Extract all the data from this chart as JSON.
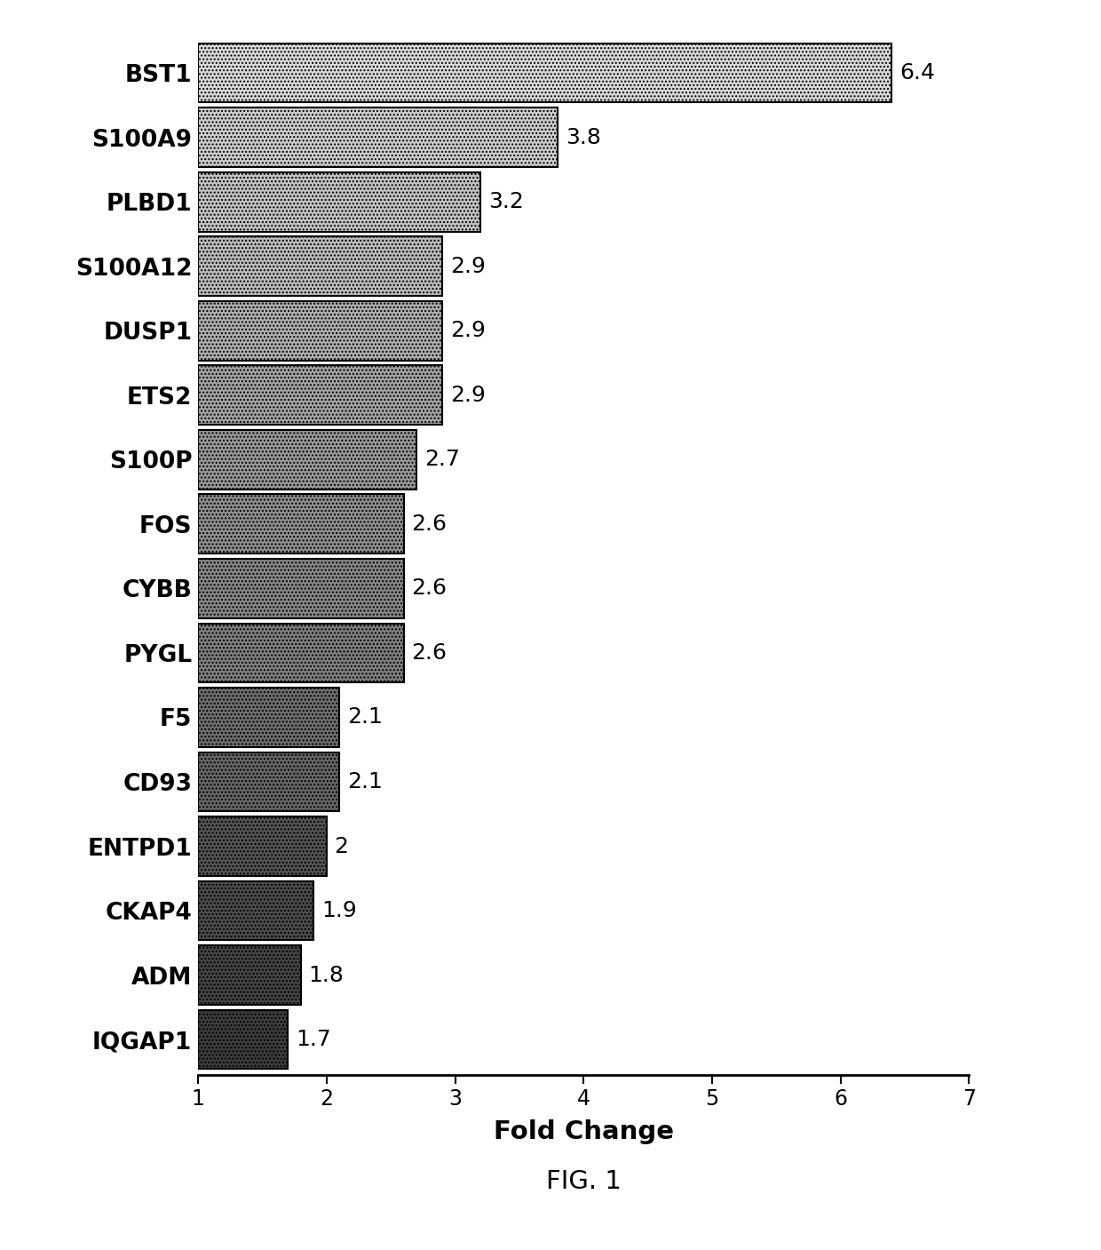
{
  "categories": [
    "BST1",
    "S100A9",
    "PLBD1",
    "S100A12",
    "DUSP1",
    "ETS2",
    "S100P",
    "FOS",
    "CYBB",
    "PYGL",
    "F5",
    "CD93",
    "ENTPD1",
    "CKAP4",
    "ADM",
    "IQGAP1"
  ],
  "values": [
    6.4,
    3.8,
    3.2,
    2.9,
    2.9,
    2.9,
    2.7,
    2.6,
    2.6,
    2.6,
    2.1,
    2.1,
    2.0,
    1.9,
    1.8,
    1.7
  ],
  "value_labels": [
    "6.4",
    "3.8",
    "3.2",
    "2.9",
    "2.9",
    "2.9",
    "2.7",
    "2.6",
    "2.6",
    "2.6",
    "2.1",
    "2.1",
    "2",
    "1.9",
    "1.8",
    "1.7"
  ],
  "bar_colors": [
    "#d8d8d8",
    "#cccccc",
    "#c2c2c2",
    "#bababa",
    "#adadad",
    "#a2a2a2",
    "#989898",
    "#8e8e8e",
    "#868686",
    "#7e7e7e",
    "#6e6e6e",
    "#666666",
    "#545454",
    "#4c4c4c",
    "#444444",
    "#3c3c3c"
  ],
  "edgecolor": "#000000",
  "xlabel": "Fold Change",
  "xlim": [
    1,
    7
  ],
  "xticks": [
    1,
    2,
    3,
    4,
    5,
    6,
    7
  ],
  "figure_caption": "FIG. 1",
  "bar_height": 0.92,
  "label_fontsize": 19,
  "tick_fontsize": 17,
  "xlabel_fontsize": 21,
  "caption_fontsize": 21,
  "value_label_fontsize": 18
}
